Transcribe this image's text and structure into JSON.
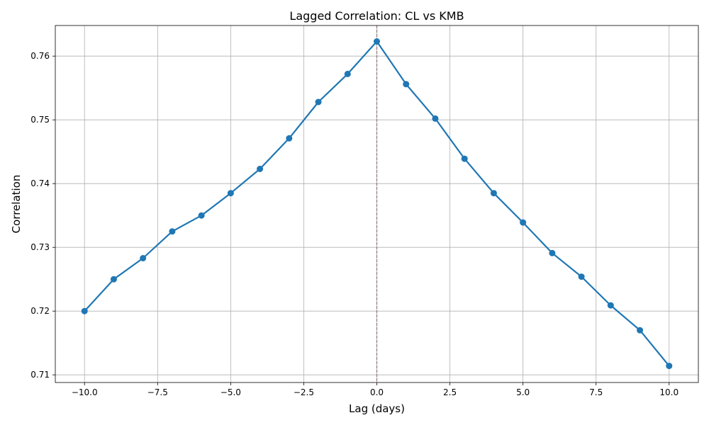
{
  "chart_data": {
    "type": "line",
    "title": "Lagged Correlation: CL vs KMB",
    "xlabel": "Lag (days)",
    "ylabel": "Correlation",
    "xlim": [
      -11,
      11
    ],
    "ylim": [
      0.7088,
      0.7648
    ],
    "x_ticks": [
      -10.0,
      -7.5,
      -5.0,
      -2.5,
      0.0,
      2.5,
      5.0,
      7.5,
      10.0
    ],
    "x_tick_labels": [
      "−10.0",
      "−7.5",
      "−5.0",
      "−2.5",
      "0.0",
      "2.5",
      "5.0",
      "7.5",
      "10.0"
    ],
    "y_ticks": [
      0.71,
      0.72,
      0.73,
      0.74,
      0.75,
      0.76
    ],
    "y_tick_labels": [
      "0.71",
      "0.72",
      "0.73",
      "0.74",
      "0.75",
      "0.76"
    ],
    "grid": true,
    "series": [
      {
        "x": [
          -10,
          -9,
          -8,
          -7,
          -6,
          -5,
          -4,
          -3,
          -2,
          -1,
          0,
          1,
          2,
          3,
          4,
          5,
          6,
          7,
          8,
          9,
          10
        ],
        "values": [
          0.72,
          0.725,
          0.7283,
          0.7325,
          0.735,
          0.7385,
          0.7423,
          0.7471,
          0.7528,
          0.7572,
          0.7623,
          0.7556,
          0.7502,
          0.7439,
          0.7385,
          0.7339,
          0.7291,
          0.7254,
          0.7209,
          0.717,
          0.7114
        ],
        "color": "#1f77b4",
        "marker": "circle"
      }
    ],
    "reference_line": {
      "orientation": "vertical",
      "x": 0,
      "style": "dashed",
      "color": "#8c6d6d"
    }
  }
}
